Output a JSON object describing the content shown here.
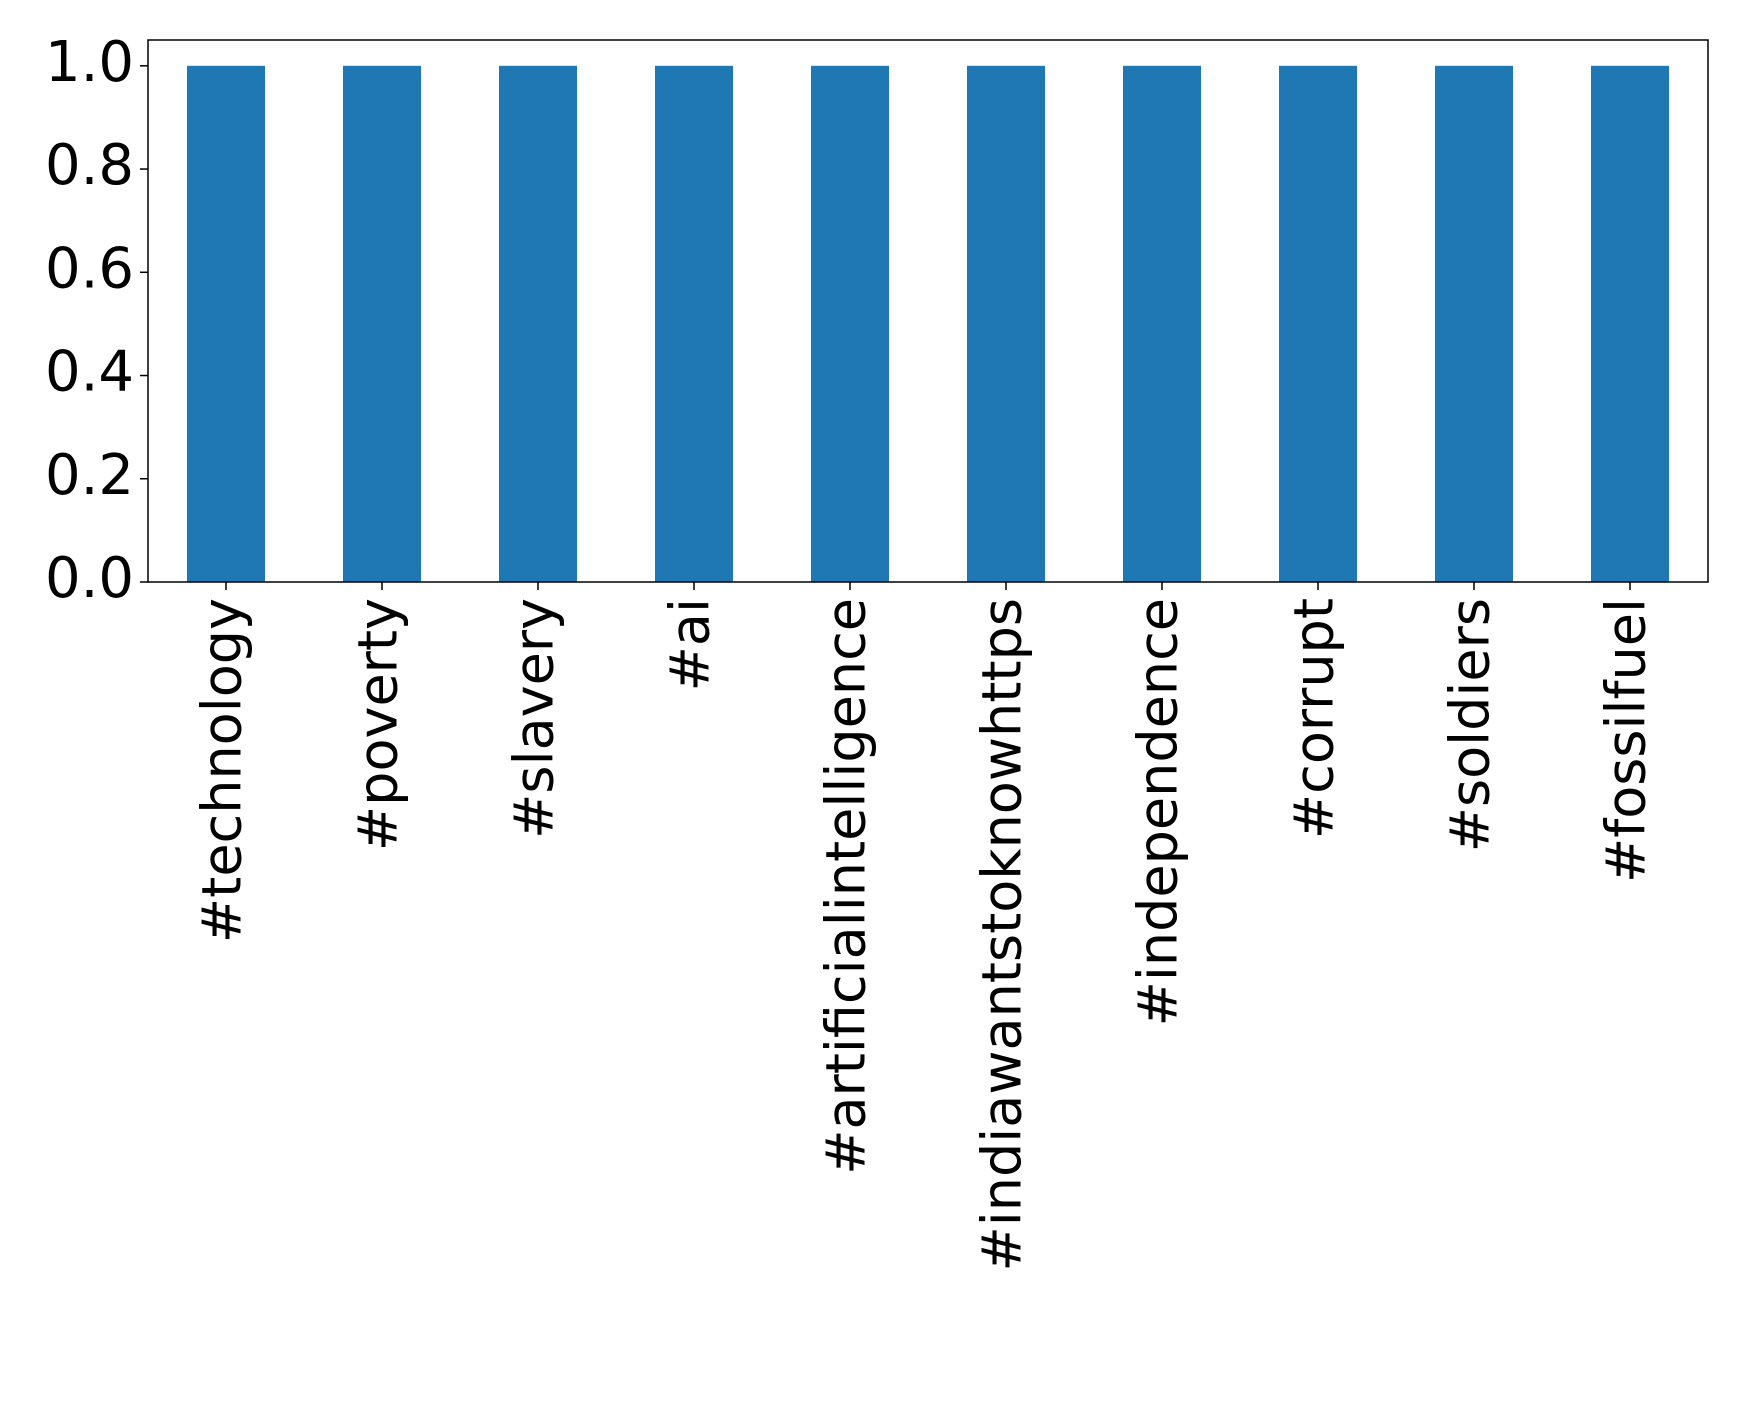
{
  "chart_data": {
    "type": "bar",
    "categories": [
      "#technology",
      "#poverty",
      "#slavery",
      "#ai",
      "#artificialintelligence",
      "#indiawantstoknowhttps",
      "#independence",
      "#corrupt",
      "#soldiers",
      "#fossilfuel"
    ],
    "values": [
      1,
      1,
      1,
      1,
      1,
      1,
      1,
      1,
      1,
      1
    ],
    "color": "#1f77b4",
    "ylim": [
      0,
      1.05
    ],
    "yticks": [
      {
        "value": 0,
        "label": "0.0"
      },
      0.2,
      0.4,
      0.6,
      0.8,
      {
        "value": 1,
        "label": "1.0"
      }
    ],
    "grid": false
  }
}
